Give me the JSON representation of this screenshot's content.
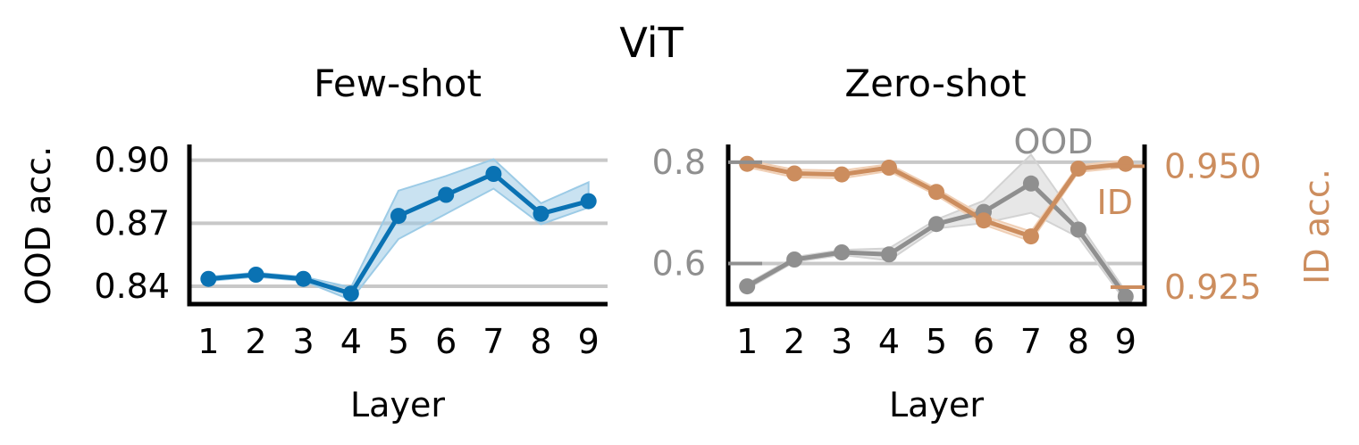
{
  "figure": {
    "title": "ViT"
  },
  "colors": {
    "blue": "#0a72b3",
    "blue_band": "#9ccbe6",
    "gray": "#8f8f8f",
    "gray_band": "#d3d3d3",
    "orange": "#cc8d5e",
    "orange_band": "#f0cfb5",
    "grid": "#c8c8c8"
  },
  "chart_data": [
    {
      "type": "line",
      "title": "Few-shot",
      "xlabel": "Layer",
      "ylabel": "OOD acc.",
      "x": [
        1,
        2,
        3,
        4,
        5,
        6,
        7,
        8,
        9
      ],
      "xlim": [
        0.6,
        9.4
      ],
      "ylim": [
        0.8315,
        0.9075
      ],
      "yticks": [
        0.84,
        0.87,
        0.9
      ],
      "ytick_labels": [
        "0.84",
        "0.87",
        "0.90"
      ],
      "grid": "y",
      "series": [
        {
          "color": "blue",
          "values": [
            0.8435,
            0.8455,
            0.8435,
            0.8365,
            0.8735,
            0.8835,
            0.8935,
            0.8745,
            0.8805
          ],
          "lower": [
            0.8425,
            0.8445,
            0.8425,
            0.8335,
            0.8625,
            0.8745,
            0.8865,
            0.8695,
            0.8775
          ],
          "upper": [
            0.8445,
            0.8465,
            0.8445,
            0.8395,
            0.8855,
            0.8925,
            0.9005,
            0.8795,
            0.8895
          ]
        }
      ]
    },
    {
      "type": "line",
      "title": "Zero-shot",
      "xlabel": "Layer",
      "ylabel_right": "ID acc.",
      "x": [
        1,
        2,
        3,
        4,
        5,
        6,
        7,
        8,
        9
      ],
      "xlim": [
        0.6,
        9.4
      ],
      "left_axis": {
        "ylim": [
          0.52,
          0.835
        ],
        "yticks": [
          0.6,
          0.8
        ],
        "ytick_labels": [
          "0.6",
          "0.8"
        ],
        "color": "gray"
      },
      "right_axis": {
        "ylim": [
          0.9215,
          0.9545
        ],
        "yticks": [
          0.925,
          0.95
        ],
        "ytick_labels": [
          "0.925",
          "0.950"
        ],
        "color": "orange"
      },
      "grid": "y",
      "series": [
        {
          "name": "OOD",
          "axis": "left",
          "color": "gray",
          "values": [
            0.555,
            0.608,
            0.622,
            0.618,
            0.678,
            0.702,
            0.758,
            0.667,
            0.535
          ],
          "lower": [
            0.55,
            0.603,
            0.617,
            0.606,
            0.669,
            0.68,
            0.7,
            0.652,
            0.525
          ],
          "upper": [
            0.56,
            0.613,
            0.627,
            0.63,
            0.687,
            0.724,
            0.815,
            0.682,
            0.545
          ]
        },
        {
          "name": "ID",
          "axis": "right",
          "color": "orange",
          "values": [
            0.9505,
            0.9485,
            0.9483,
            0.9497,
            0.9447,
            0.9388,
            0.9355,
            0.9495,
            0.9505
          ],
          "lower": [
            0.9498,
            0.9477,
            0.9475,
            0.949,
            0.944,
            0.9379,
            0.9345,
            0.9488,
            0.9498
          ],
          "upper": [
            0.9512,
            0.9493,
            0.9491,
            0.9504,
            0.9454,
            0.9397,
            0.9365,
            0.9502,
            0.9512
          ]
        }
      ],
      "annotations": [
        {
          "text": "OOD",
          "color": "gray"
        },
        {
          "text": "ID",
          "color": "orange"
        }
      ]
    }
  ]
}
